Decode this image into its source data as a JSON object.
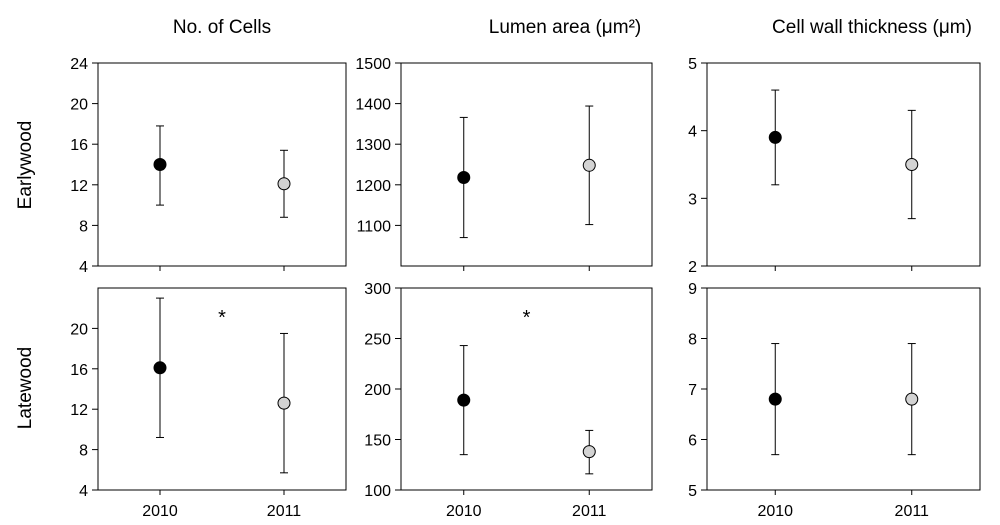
{
  "figure": {
    "columns": [
      {
        "title": "No. of Cells"
      },
      {
        "title": "Lumen area (μm²)"
      },
      {
        "title": "Cell wall thickness (μm)"
      }
    ],
    "rows": [
      {
        "label": "Earlywood"
      },
      {
        "label": "Latewood"
      }
    ]
  },
  "colors": {
    "series_2010": "#000000",
    "series_2011": "#d3d3d3",
    "axis": "#000000"
  },
  "chart_data": [
    {
      "type": "scatter",
      "row": "Earlywood",
      "column": "No. of Cells",
      "categories": [
        "2010",
        "2011"
      ],
      "ylim": [
        4,
        24
      ],
      "yticks": [
        4,
        8,
        12,
        16,
        20,
        24
      ],
      "values": [
        14,
        12.1
      ],
      "error_low": [
        10,
        8.8
      ],
      "error_high": [
        17.8,
        15.4
      ],
      "marker_fill": [
        "black",
        "lightgray"
      ],
      "significance": ""
    },
    {
      "type": "scatter",
      "row": "Earlywood",
      "column": "Lumen area (μm²)",
      "categories": [
        "2010",
        "2011"
      ],
      "ylim": [
        1000,
        1500
      ],
      "yticks": [
        1100,
        1200,
        1300,
        1400,
        1500
      ],
      "values": [
        1218,
        1248
      ],
      "error_low": [
        1070,
        1102
      ],
      "error_high": [
        1366,
        1394
      ],
      "marker_fill": [
        "black",
        "lightgray"
      ],
      "significance": ""
    },
    {
      "type": "scatter",
      "row": "Earlywood",
      "column": "Cell wall thickness (μm)",
      "categories": [
        "2010",
        "2011"
      ],
      "ylim": [
        2,
        5
      ],
      "yticks": [
        2,
        3,
        4,
        5
      ],
      "values": [
        3.9,
        3.5
      ],
      "error_low": [
        3.2,
        2.7
      ],
      "error_high": [
        4.6,
        4.3
      ],
      "marker_fill": [
        "black",
        "lightgray"
      ],
      "significance": ""
    },
    {
      "type": "scatter",
      "row": "Latewood",
      "column": "No. of Cells",
      "categories": [
        "2010",
        "2011"
      ],
      "ylim": [
        4,
        24
      ],
      "yticks": [
        4,
        8,
        12,
        16,
        20
      ],
      "values": [
        16.1,
        12.6
      ],
      "error_low": [
        9.2,
        5.7
      ],
      "error_high": [
        23,
        19.5
      ],
      "marker_fill": [
        "black",
        "lightgray"
      ],
      "significance": "*"
    },
    {
      "type": "scatter",
      "row": "Latewood",
      "column": "Lumen area (μm²)",
      "categories": [
        "2010",
        "2011"
      ],
      "ylim": [
        100,
        300
      ],
      "yticks": [
        100,
        150,
        200,
        250,
        300
      ],
      "values": [
        189,
        138
      ],
      "error_low": [
        135,
        116
      ],
      "error_high": [
        243,
        159
      ],
      "marker_fill": [
        "black",
        "lightgray"
      ],
      "significance": "*"
    },
    {
      "type": "scatter",
      "row": "Latewood",
      "column": "Cell wall thickness (μm)",
      "categories": [
        "2010",
        "2011"
      ],
      "ylim": [
        5,
        9
      ],
      "yticks": [
        5,
        6,
        7,
        8,
        9
      ],
      "values": [
        6.8,
        6.8
      ],
      "error_low": [
        5.7,
        5.7
      ],
      "error_high": [
        7.9,
        7.9
      ],
      "marker_fill": [
        "black",
        "lightgray"
      ],
      "significance": ""
    }
  ]
}
